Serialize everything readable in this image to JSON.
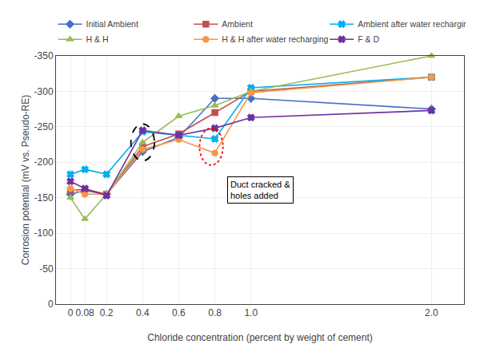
{
  "chart_data": {
    "type": "line",
    "x": [
      0,
      0.08,
      0.2,
      0.4,
      0.6,
      0.8,
      1.0,
      2.0
    ],
    "series": [
      {
        "name": "Initial Ambient",
        "color": "#4472C4",
        "marker": "diamond",
        "values": [
          -155,
          -160,
          -155,
          -215,
          -235,
          -290,
          -290,
          -275
        ]
      },
      {
        "name": "Ambient",
        "color": "#C0504D",
        "marker": "square",
        "values": [
          -160,
          -162,
          -155,
          -222,
          -240,
          -270,
          -300,
          -320
        ]
      },
      {
        "name": "Ambient after water recharging",
        "color": "#00B0F0",
        "marker": "x",
        "values": [
          -183,
          -190,
          -183,
          -243,
          -238,
          -233,
          -305,
          -320
        ]
      },
      {
        "name": "H & H",
        "color": "#9BBB59",
        "marker": "triangle-up",
        "values": [
          -150,
          -120,
          -155,
          -228,
          -265,
          -280,
          -300,
          -350
        ]
      },
      {
        "name": "H & H after water recharging",
        "color": "#F79646",
        "marker": "circle",
        "values": [
          -163,
          -155,
          -155,
          -218,
          -232,
          -213,
          -298,
          -320
        ]
      },
      {
        "name": "F & D",
        "color": "#7030A0",
        "marker": "x",
        "values": [
          -173,
          -163,
          -153,
          -245,
          -238,
          -248,
          -263,
          -273
        ]
      }
    ],
    "xlabel": "Chloride concentration (percent by weight of cement)",
    "ylabel": "Corrosion potential (mV vs. Pseudo-RE)",
    "xlim": [
      -0.08,
      2.18
    ],
    "ylim": [
      0,
      -350
    ],
    "xticks": [
      0,
      0.08,
      0.2,
      0.4,
      0.6,
      0.8,
      {
        "value": 1.0,
        "label": "1.0"
      },
      {
        "value": 2.0,
        "label": "2.0"
      }
    ],
    "yticks": [
      0,
      -50,
      -100,
      -150,
      -200,
      -250,
      -300,
      -350
    ],
    "highlights": [
      {
        "x": 0.4,
        "y": -228,
        "width": 0.13,
        "height": 52,
        "color": "black",
        "line_style": "dashed"
      },
      {
        "x": 0.78,
        "y": -222,
        "width": 0.13,
        "height": 52,
        "color": "red",
        "line_style": "dotted"
      }
    ],
    "annotations": [
      {
        "text": "Duct cracked &\nholes added",
        "x": 0.87,
        "y": -180
      }
    ],
    "grid": true,
    "legend": "top"
  }
}
